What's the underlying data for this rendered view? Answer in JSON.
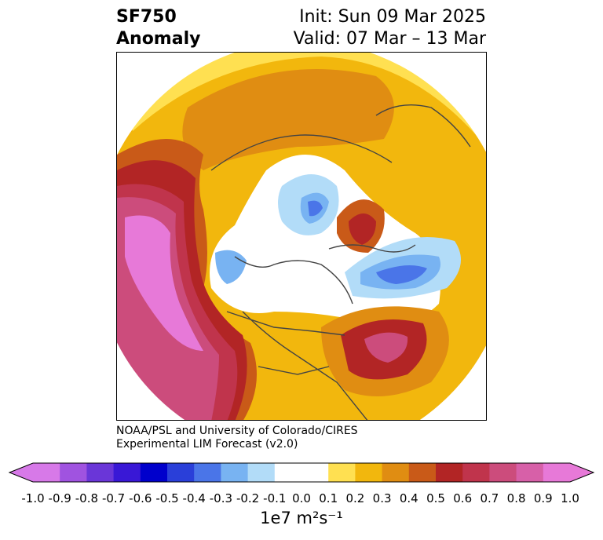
{
  "title": {
    "left_line1": "SF750",
    "left_line2": "Anomaly",
    "right_line1": "Init: Sun 09 Mar 2025",
    "right_line2": "Valid: 07 Mar – 13 Mar"
  },
  "credit": {
    "line1": "NOAA/PSL and University of Colorado/CIRES",
    "line2": "Experimental LIM Forecast (v2.0)"
  },
  "colorbar": {
    "units": "1e7 m²s⁻¹",
    "ticks": [
      "-1.0",
      "-0.9",
      "-0.8",
      "-0.7",
      "-0.6",
      "-0.5",
      "-0.4",
      "-0.3",
      "-0.2",
      "-0.1",
      "0.0",
      "0.1",
      "0.2",
      "0.3",
      "0.4",
      "0.5",
      "0.6",
      "0.7",
      "0.8",
      "0.9",
      "1.0"
    ],
    "colors": [
      "#d779e8",
      "#a053e0",
      "#6a36d8",
      "#3918d6",
      "#0000cc",
      "#2a3fd9",
      "#4a75e8",
      "#78b3f2",
      "#b2dcf8",
      "#ffffff",
      "#ffffff",
      "#ffe051",
      "#f2b70d",
      "#e08d12",
      "#c95a18",
      "#b22525",
      "#c0344c",
      "#cc4c7c",
      "#d760a8",
      "#e779d8"
    ],
    "under_color": "#d779e8",
    "over_color": "#e779d8"
  }
}
